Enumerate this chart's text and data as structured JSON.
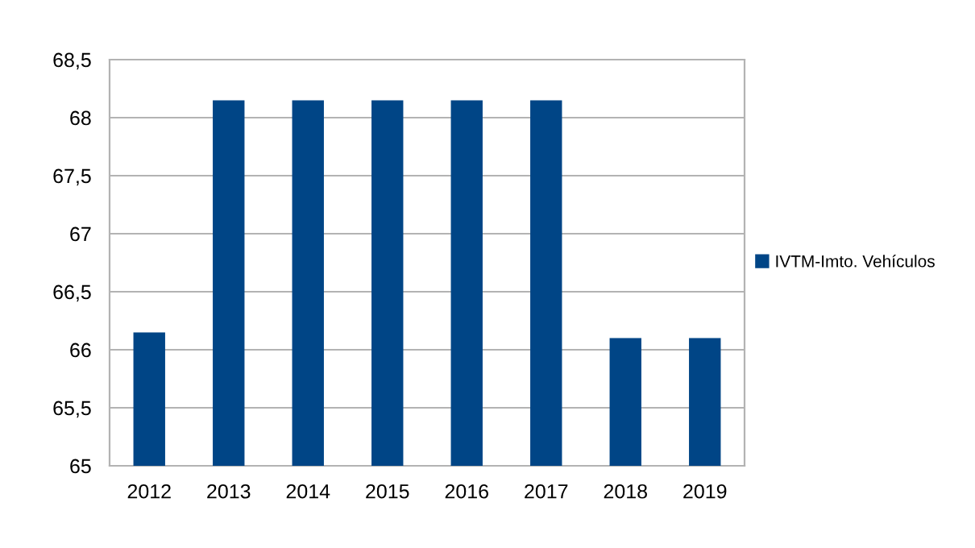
{
  "chart_data": {
    "type": "bar",
    "categories": [
      "2012",
      "2013",
      "2014",
      "2015",
      "2016",
      "2017",
      "2018",
      "2019"
    ],
    "series": [
      {
        "name": "IVTM-Imto. Vehículos",
        "color": "#004586",
        "values": [
          66.15,
          68.15,
          68.15,
          68.15,
          68.15,
          68.15,
          66.1,
          66.1
        ]
      }
    ],
    "ylim": [
      65,
      68.5
    ],
    "yticks": [
      65,
      {
        "value": 65.5,
        "label": "65,5"
      },
      66,
      {
        "value": 66.5,
        "label": "66,5"
      },
      67,
      {
        "value": 67.5,
        "label": "67,5"
      },
      68,
      {
        "value": 68.5,
        "label": "68,5"
      }
    ],
    "grid": "y",
    "legend": "right"
  }
}
